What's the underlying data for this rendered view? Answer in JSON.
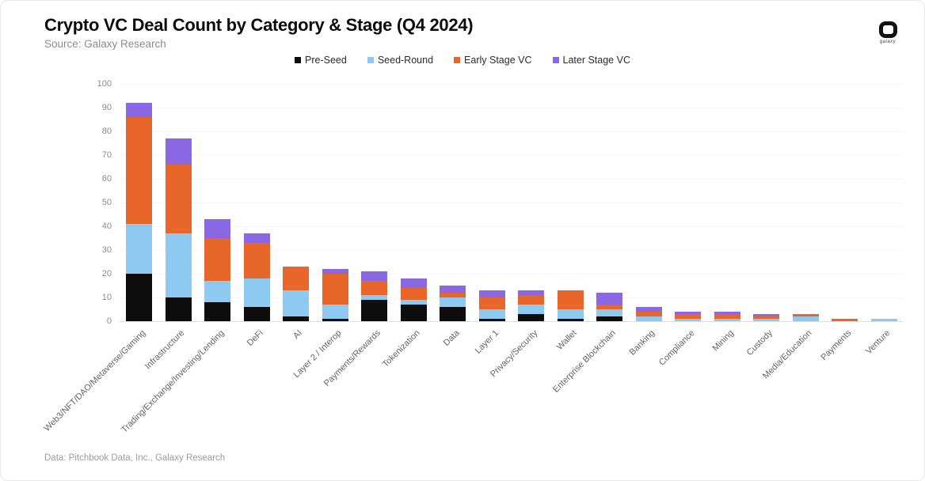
{
  "header": {
    "title": "Crypto VC Deal Count by Category & Stage (Q4 2024)",
    "source": "Source: Galaxy Research"
  },
  "logo": {
    "brand": "galaxy"
  },
  "footer": {
    "credit": "Data: Pitchbook Data, Inc., Galaxy Research"
  },
  "chart_data": {
    "type": "bar",
    "stacked": true,
    "title": "Crypto VC Deal Count by Category & Stage (Q4 2024)",
    "xlabel": "",
    "ylabel": "",
    "ylim": [
      0,
      100
    ],
    "ytick_step": 10,
    "grid": "horizontal-faint",
    "legend_position": "top-center",
    "categories": [
      "Web3/NFT/DAO/Metaverse/Gaming",
      "Infrastructure",
      "Trading/Exchange/Investing/Lending",
      "DeFi",
      "AI",
      "Layer 2 / Interop",
      "Payments/Rewards",
      "Tokenization",
      "Data",
      "Layer 1",
      "Privacy/Security",
      "Wallet",
      "Enterprise Blockchain",
      "Banking",
      "Compliance",
      "Mining",
      "Custody",
      "Media/Education",
      "Payments",
      "Venture"
    ],
    "series": [
      {
        "name": "Pre-Seed",
        "color": "#0d0d0d",
        "values": [
          20,
          10,
          8,
          6,
          2,
          1,
          9,
          7,
          6,
          1,
          3,
          1,
          2,
          0,
          0,
          0,
          0,
          0,
          0,
          0
        ]
      },
      {
        "name": "Seed-Round",
        "color": "#8ec9f2",
        "values": [
          21,
          27,
          9,
          12,
          11,
          6,
          2,
          2,
          4,
          4,
          4,
          4,
          3,
          2,
          1,
          1,
          1,
          2,
          0,
          1
        ]
      },
      {
        "name": "Early Stage VC",
        "color": "#e8662a",
        "values": [
          45,
          29,
          18,
          15,
          10,
          13,
          6,
          5,
          2,
          5,
          4,
          8,
          2,
          2,
          2,
          2,
          1,
          1,
          1,
          0
        ]
      },
      {
        "name": "Later Stage VC",
        "color": "#8a68e4",
        "values": [
          6,
          11,
          8,
          4,
          0,
          2,
          4,
          4,
          3,
          3,
          2,
          0,
          5,
          2,
          1,
          1,
          1,
          0,
          0,
          0
        ]
      }
    ],
    "totals": [
      92,
      77,
      43,
      37,
      23,
      22,
      21,
      18,
      15,
      13,
      13,
      13,
      12,
      6,
      4,
      4,
      3,
      3,
      1,
      1
    ]
  }
}
